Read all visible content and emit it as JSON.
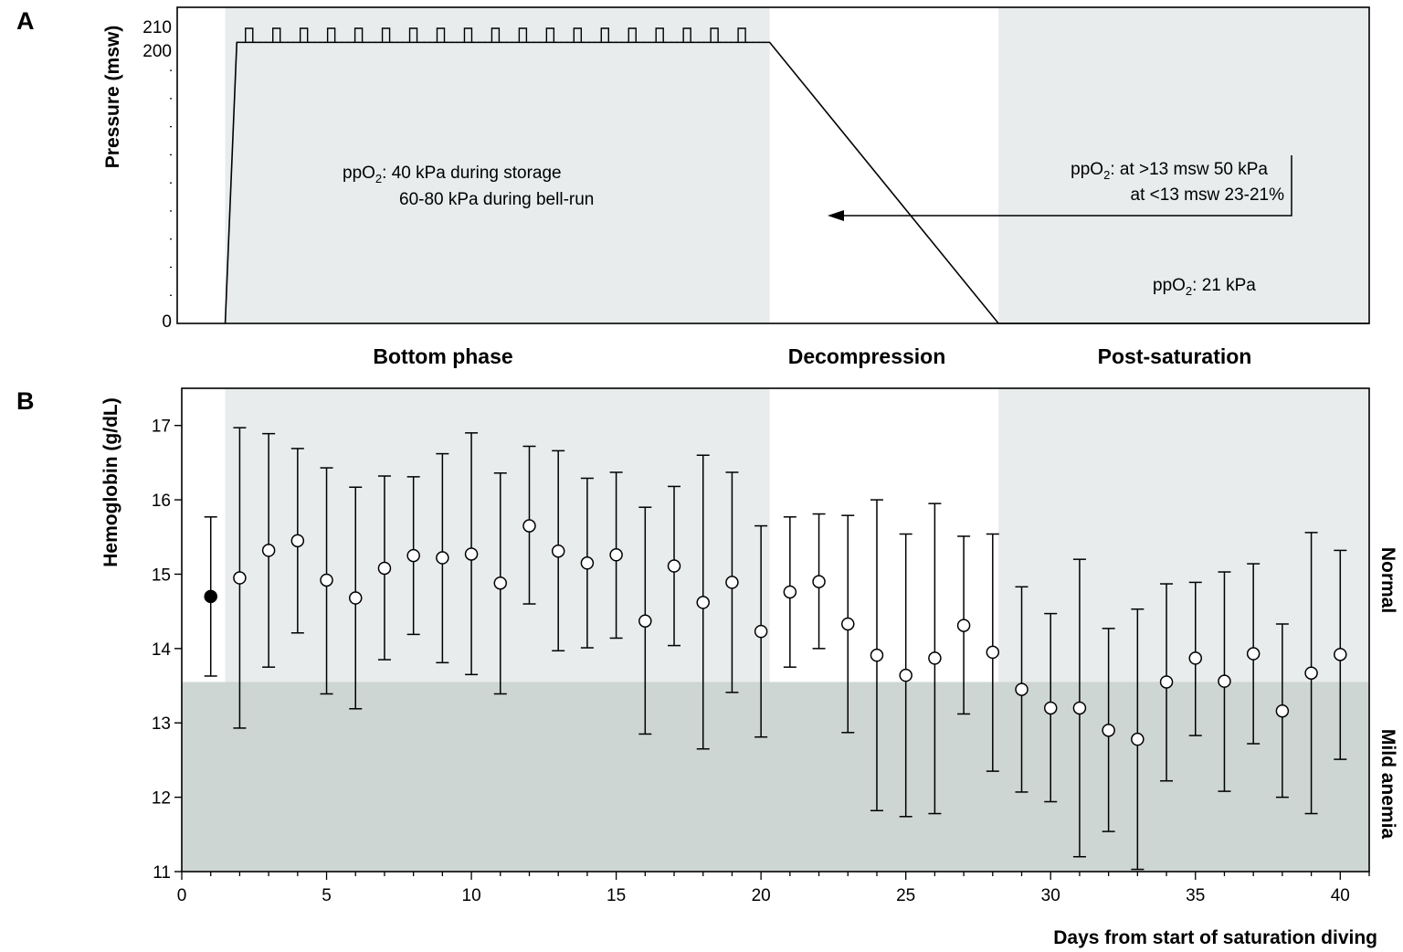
{
  "chart_data": [
    {
      "type": "line",
      "panel": "A",
      "ylabel": "Pressure (msw)",
      "y_ticks": [
        "210",
        "200",
        "0"
      ],
      "ylim": [
        0,
        210
      ],
      "profile": {
        "x": [
          1.5,
          1.9,
          20.3,
          28.2,
          41
        ],
        "y": [
          0,
          200,
          200,
          0,
          0
        ]
      },
      "bell_runs": {
        "count": 19,
        "from": 200,
        "to": 210,
        "x_start": 2.2,
        "x_step": 0.945
      },
      "shaded_phases": [
        {
          "label": "Bottom phase",
          "x": [
            1.5,
            20.3
          ]
        },
        {
          "label": "Post-saturation",
          "x": [
            28.2,
            41
          ]
        }
      ],
      "phase_labels": [
        "Bottom phase",
        "Decompression",
        "Post-saturation"
      ],
      "annotations": {
        "bottom_line1_pre": "ppO",
        "bottom_line1_sub": "2",
        "bottom_line1_post": ": 40 kPa during storage",
        "bottom_line2": "60-80 kPa during bell-run",
        "decomp_line1_pre": "ppO",
        "decomp_line1_sub": "2",
        "decomp_line1_post": ": at >13 msw 50 kPa",
        "decomp_line2": "at <13 msw  23-21%",
        "post_pre": "ppO",
        "post_sub": "2",
        "post_post": ": 21 kPa"
      }
    },
    {
      "type": "scatter",
      "panel": "B",
      "xlabel": "Days from start of saturation diving",
      "ylabel": "Hemoglobin (g/dL)",
      "xlim": [
        0,
        41
      ],
      "ylim": [
        11,
        17.5
      ],
      "x_ticks": [
        0,
        5,
        10,
        15,
        20,
        25,
        30,
        35,
        40
      ],
      "y_ticks": [
        11,
        12,
        13,
        14,
        15,
        16,
        17
      ],
      "anemia_threshold": 13.55,
      "zone_labels": [
        "Normal",
        "Mild anemia"
      ],
      "baseline": {
        "x": 1,
        "mean": 14.7,
        "low": 13.63,
        "high": 15.77
      },
      "points": [
        {
          "x": 2,
          "mean": 14.95,
          "low": 12.93,
          "high": 16.97
        },
        {
          "x": 3,
          "mean": 15.32,
          "low": 13.75,
          "high": 16.89
        },
        {
          "x": 4,
          "mean": 15.45,
          "low": 14.21,
          "high": 16.69
        },
        {
          "x": 5,
          "mean": 14.92,
          "low": 13.39,
          "high": 16.43
        },
        {
          "x": 6,
          "mean": 14.68,
          "low": 13.19,
          "high": 16.17
        },
        {
          "x": 7,
          "mean": 15.08,
          "low": 13.85,
          "high": 16.32
        },
        {
          "x": 8,
          "mean": 15.25,
          "low": 14.19,
          "high": 16.31
        },
        {
          "x": 9,
          "mean": 15.22,
          "low": 13.81,
          "high": 16.62
        },
        {
          "x": 10,
          "mean": 15.27,
          "low": 13.65,
          "high": 16.9
        },
        {
          "x": 11,
          "mean": 14.88,
          "low": 13.39,
          "high": 16.36
        },
        {
          "x": 12,
          "mean": 15.65,
          "low": 14.6,
          "high": 16.72
        },
        {
          "x": 13,
          "mean": 15.31,
          "low": 13.97,
          "high": 16.66
        },
        {
          "x": 14,
          "mean": 15.15,
          "low": 14.01,
          "high": 16.29
        },
        {
          "x": 15,
          "mean": 15.26,
          "low": 14.14,
          "high": 16.37
        },
        {
          "x": 16,
          "mean": 14.37,
          "low": 12.85,
          "high": 15.9
        },
        {
          "x": 17,
          "mean": 15.11,
          "low": 14.04,
          "high": 16.18
        },
        {
          "x": 18,
          "mean": 14.62,
          "low": 12.65,
          "high": 16.6
        },
        {
          "x": 19,
          "mean": 14.89,
          "low": 13.41,
          "high": 16.37
        },
        {
          "x": 20,
          "mean": 14.23,
          "low": 12.81,
          "high": 15.65
        },
        {
          "x": 21,
          "mean": 14.76,
          "low": 13.75,
          "high": 15.77
        },
        {
          "x": 22,
          "mean": 14.9,
          "low": 14.0,
          "high": 15.81
        },
        {
          "x": 23,
          "mean": 14.33,
          "low": 12.87,
          "high": 15.79
        },
        {
          "x": 24,
          "mean": 13.91,
          "low": 11.82,
          "high": 16.0
        },
        {
          "x": 25,
          "mean": 13.64,
          "low": 11.74,
          "high": 15.54
        },
        {
          "x": 26,
          "mean": 13.87,
          "low": 11.78,
          "high": 15.95
        },
        {
          "x": 27,
          "mean": 14.31,
          "low": 13.12,
          "high": 15.51
        },
        {
          "x": 28,
          "mean": 13.95,
          "low": 12.35,
          "high": 15.54
        },
        {
          "x": 29,
          "mean": 13.45,
          "low": 12.07,
          "high": 14.83
        },
        {
          "x": 30,
          "mean": 13.2,
          "low": 11.94,
          "high": 14.47
        },
        {
          "x": 31,
          "mean": 13.2,
          "low": 11.2,
          "high": 15.2
        },
        {
          "x": 32,
          "mean": 12.9,
          "low": 11.54,
          "high": 14.27
        },
        {
          "x": 33,
          "mean": 12.78,
          "low": 11.03,
          "high": 14.53
        },
        {
          "x": 34,
          "mean": 13.55,
          "low": 12.22,
          "high": 14.87
        },
        {
          "x": 35,
          "mean": 13.87,
          "low": 12.83,
          "high": 14.89
        },
        {
          "x": 36,
          "mean": 13.56,
          "low": 12.08,
          "high": 15.03
        },
        {
          "x": 37,
          "mean": 13.93,
          "low": 12.72,
          "high": 15.14
        },
        {
          "x": 38,
          "mean": 13.16,
          "low": 12.0,
          "high": 14.33
        },
        {
          "x": 39,
          "mean": 13.67,
          "low": 11.78,
          "high": 15.56
        },
        {
          "x": 40,
          "mean": 13.92,
          "low": 12.51,
          "high": 15.32
        }
      ]
    }
  ],
  "labels": {
    "panel_a": "A",
    "panel_b": "B"
  },
  "colors": {
    "shade_light": "#e8ecec",
    "shade_dark": "#cdd6d3",
    "ink": "#000000"
  }
}
